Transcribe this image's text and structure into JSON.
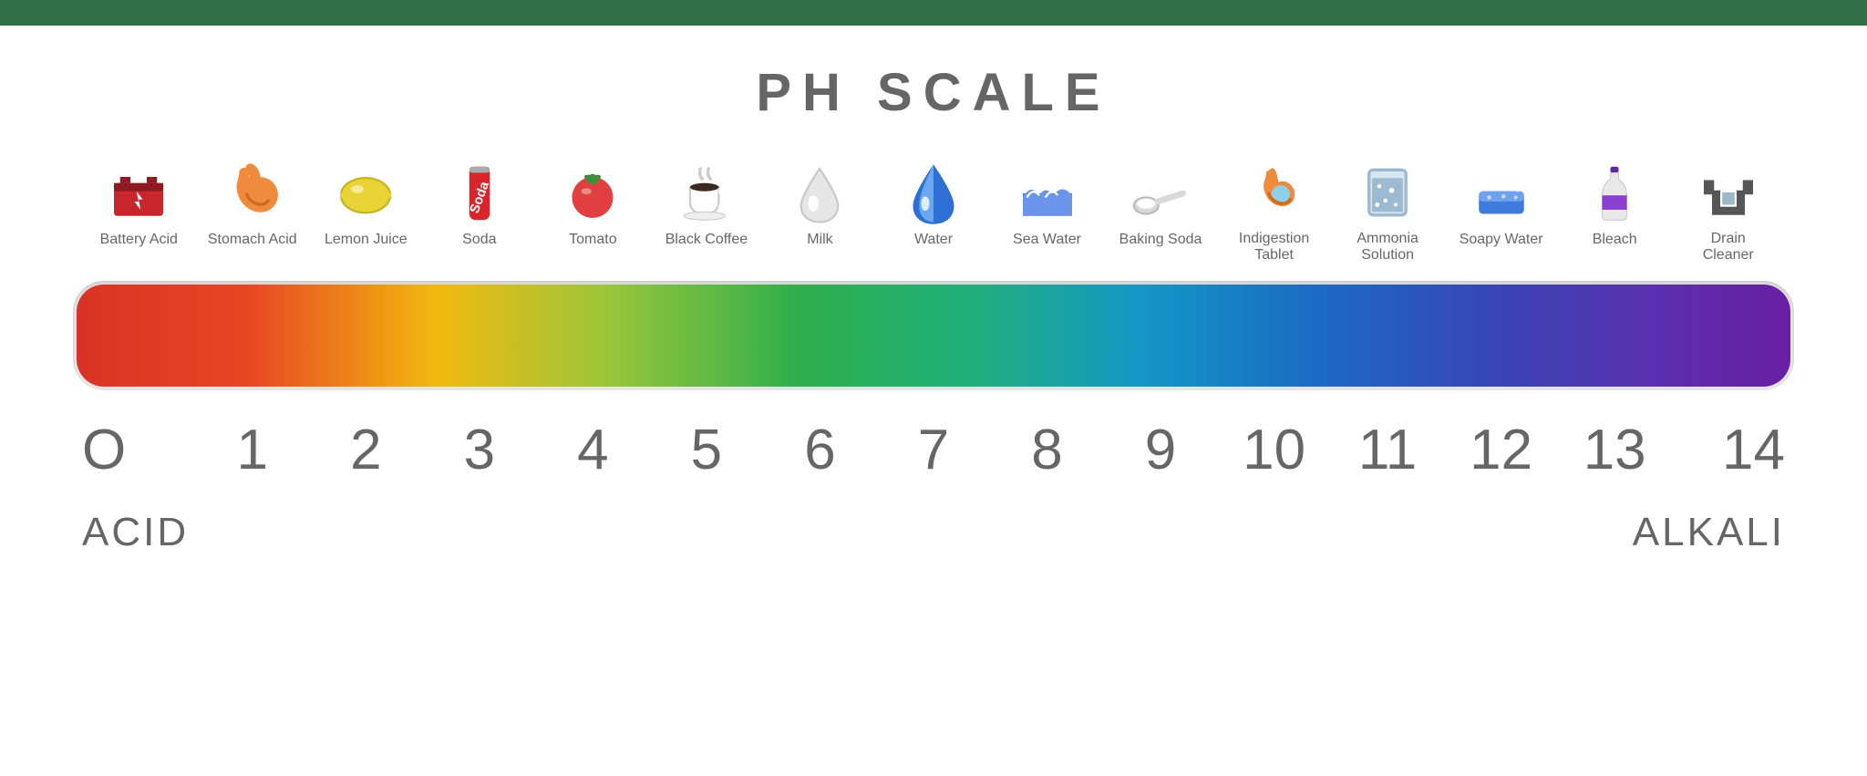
{
  "top_band_color": "#2e6f46",
  "title": "PH  SCALE",
  "title_color": "#666666",
  "label_color": "#666666",
  "number_color": "#666666",
  "end_label_color": "#666666",
  "gradient_stops": [
    {
      "pct": 0,
      "color": "#d93226"
    },
    {
      "pct": 10,
      "color": "#e84722"
    },
    {
      "pct": 21,
      "color": "#f2b90f"
    },
    {
      "pct": 31,
      "color": "#9ac63a"
    },
    {
      "pct": 42,
      "color": "#2fae4a"
    },
    {
      "pct": 52,
      "color": "#1fb07a"
    },
    {
      "pct": 62,
      "color": "#1597c6"
    },
    {
      "pct": 72,
      "color": "#1a6cc4"
    },
    {
      "pct": 82,
      "color": "#3648b5"
    },
    {
      "pct": 92,
      "color": "#5a2fb0"
    },
    {
      "pct": 100,
      "color": "#6a1ea3"
    }
  ],
  "left_end": "ACID",
  "right_end": "ALKALI",
  "numbers": [
    "O",
    "1",
    "2",
    "3",
    "4",
    "5",
    "6",
    "7",
    "8",
    "9",
    "10",
    "11",
    "12",
    "13",
    "14"
  ],
  "items": [
    {
      "label": "Battery Acid",
      "icon": "battery",
      "colors": [
        "#c9252d",
        "#8e1b22",
        "#ffffff"
      ]
    },
    {
      "label": "Stomach Acid",
      "icon": "stomach",
      "colors": [
        "#f08a3c",
        "#d06a20"
      ]
    },
    {
      "label": "Lemon Juice",
      "icon": "lemon",
      "colors": [
        "#e8d437",
        "#c6b51f"
      ]
    },
    {
      "label": "Soda",
      "icon": "soda",
      "colors": [
        "#d8242a",
        "#ffffff"
      ]
    },
    {
      "label": "Tomato",
      "icon": "tomato",
      "colors": [
        "#e24040",
        "#3f8f3a"
      ]
    },
    {
      "label": "Black Coffee",
      "icon": "coffee",
      "colors": [
        "#ffffff",
        "#3a2a22",
        "#b7b7b7"
      ]
    },
    {
      "label": "Milk",
      "icon": "milkdrop",
      "colors": [
        "#e6e6e6",
        "#c9c9c9",
        "#ffffff"
      ]
    },
    {
      "label": "Water",
      "icon": "waterdrop",
      "colors": [
        "#2e6fd6",
        "#6aa7ef",
        "#ffffff"
      ]
    },
    {
      "label": "Sea Water",
      "icon": "seawave",
      "colors": [
        "#4a7de0",
        "#6b95ea",
        "#ffffff"
      ]
    },
    {
      "label": "Baking  Soda",
      "icon": "spoon",
      "colors": [
        "#d9d9d9",
        "#ffffff",
        "#bcbcbc"
      ]
    },
    {
      "label": "Indigestion\nTablet",
      "icon": "stomach2",
      "colors": [
        "#f08a3c",
        "#d06a20",
        "#8fd0e8"
      ]
    },
    {
      "label": "Ammonia\nSolution",
      "icon": "beaker",
      "colors": [
        "#9cbad1",
        "#d8e6f0",
        "#ffffff"
      ]
    },
    {
      "label": "Soapy Water",
      "icon": "sponge",
      "colors": [
        "#3f7bdc",
        "#6fa2ea",
        "#ffffff"
      ]
    },
    {
      "label": "Bleach",
      "icon": "bottle",
      "colors": [
        "#e8e8e8",
        "#8b3fd1",
        "#5e2aa0"
      ]
    },
    {
      "label": "Drain\nCleaner",
      "icon": "drainpipe",
      "colors": [
        "#565656",
        "#9bb9c8"
      ]
    }
  ]
}
